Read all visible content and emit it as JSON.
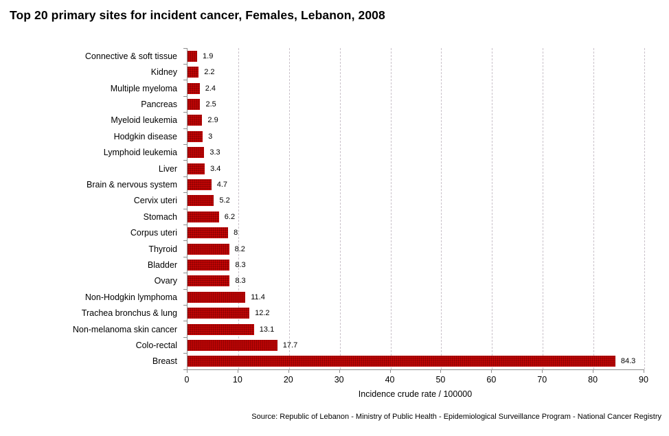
{
  "title": "Top 20 primary sites for incident cancer, Females, Lebanon, 2008",
  "source": "Source: Republic of Lebanon  - Ministry of Public Health - Epidemiological Surveillance Program - National Cancer Registry",
  "chart_data": {
    "type": "bar",
    "orientation": "horizontal",
    "title": "Top 20 primary sites for incident cancer, Females, Lebanon, 2008",
    "categories": [
      "Connective & soft tissue",
      "Kidney",
      "Multiple myeloma",
      "Pancreas",
      "Myeloid leukemia",
      "Hodgkin disease",
      "Lymphoid leukemia",
      "Liver",
      "Brain & nervous system",
      "Cervix uteri",
      "Stomach",
      "Corpus uteri",
      "Thyroid",
      "Bladder",
      "Ovary",
      "Non-Hodgkin lymphoma",
      "Trachea bronchus & lung",
      "Non-melanoma skin cancer",
      "Colo-rectal",
      "Breast"
    ],
    "values": [
      1.9,
      2.2,
      2.4,
      2.5,
      2.9,
      3,
      3.3,
      3.4,
      4.7,
      5.2,
      6.2,
      8,
      8.2,
      8.3,
      8.3,
      11.4,
      12.2,
      13.1,
      17.7,
      84.3
    ],
    "value_labels": [
      "1.9",
      "2.2",
      "2.4",
      "2.5",
      "2.9",
      "3",
      "3.3",
      "3.4",
      "4.7",
      "5.2",
      "6.2",
      "8",
      "8.2",
      "8.3",
      "8.3",
      "11.4",
      "12.2",
      "13.1",
      "17.7",
      "84.3"
    ],
    "xlabel": "Incidence crude rate / 100000",
    "ylabel": "",
    "xlim": [
      0,
      90
    ],
    "xticks": [
      0,
      10,
      20,
      30,
      40,
      50,
      60,
      70,
      80,
      90
    ],
    "grid": "vertical-dashed",
    "legend": "none",
    "bar_color": "#c40404",
    "gridline_color": "#c9c1c9",
    "axis_color": "#8e8e8e"
  }
}
